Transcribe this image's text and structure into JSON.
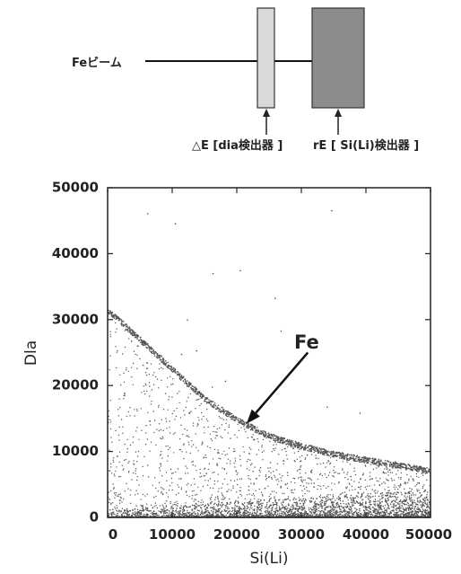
{
  "diagram": {
    "beam_label": "Feビーム",
    "detector_de_label": "△E [dia検出器 ]",
    "detector_re_label": "rE [ Si(Li)検出器 ]",
    "detector_de_color": "#d9d9d9",
    "detector_re_color": "#8c8c8c"
  },
  "chart_data": {
    "type": "scatter",
    "xlabel": "Si(Li)",
    "ylabel": "Dla",
    "xlim": [
      0,
      50000
    ],
    "ylim": [
      0,
      50000
    ],
    "x_ticks": [
      0,
      10000,
      20000,
      30000,
      40000,
      50000
    ],
    "x_tick_labels": [
      "0",
      "10000",
      "20000",
      "30000",
      "40000",
      "50000"
    ],
    "y_ticks": [
      0,
      10000,
      20000,
      30000,
      40000,
      50000
    ],
    "y_tick_labels": [
      "0",
      "10000",
      "20000",
      "30000",
      "40000",
      "50000"
    ],
    "grid": false,
    "point_color": "#555555",
    "fe_locus": {
      "x": [
        0,
        5000,
        10000,
        15000,
        20000,
        25000,
        30000,
        35000,
        40000,
        45000,
        50000
      ],
      "y": [
        31500,
        27000,
        22500,
        18000,
        14800,
        12300,
        10800,
        9600,
        8700,
        7900,
        7000
      ]
    },
    "annotation": {
      "text": "Fe",
      "arrow_tip": [
        21500,
        14200
      ],
      "arrow_tail": [
        31000,
        25000
      ]
    }
  }
}
